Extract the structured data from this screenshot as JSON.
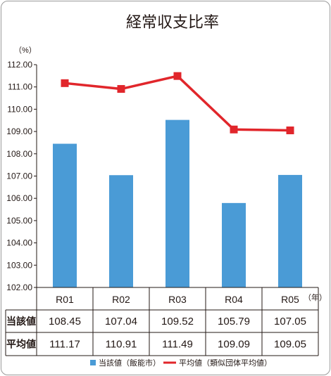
{
  "chart_data": {
    "type": "bar",
    "title": "経常収支比率",
    "yunit": "（%）",
    "xunit": "（年）",
    "categories": [
      "R01",
      "R02",
      "R03",
      "R04",
      "R05"
    ],
    "ylim": [
      102,
      112
    ],
    "yticks": [
      "102.00",
      "103.00",
      "104.00",
      "105.00",
      "106.00",
      "107.00",
      "108.00",
      "109.00",
      "110.00",
      "111.00",
      "112.00"
    ],
    "grid": false,
    "legend_position": "bottom",
    "series": [
      {
        "name": "当該値（飯能市）",
        "type": "bar",
        "color": "#4a9bd6",
        "values": [
          108.45,
          107.04,
          109.52,
          105.79,
          107.05
        ]
      },
      {
        "name": "平均値（類似団体平均値）",
        "type": "line",
        "color": "#e1262b",
        "values": [
          111.17,
          110.91,
          111.49,
          109.09,
          109.05
        ]
      }
    ],
    "table": {
      "row_headers": [
        "当該値",
        "平均値"
      ],
      "rows": [
        [
          "108.45",
          "107.04",
          "109.52",
          "105.79",
          "107.05"
        ],
        [
          "111.17",
          "110.91",
          "111.49",
          "109.09",
          "109.05"
        ]
      ]
    }
  }
}
